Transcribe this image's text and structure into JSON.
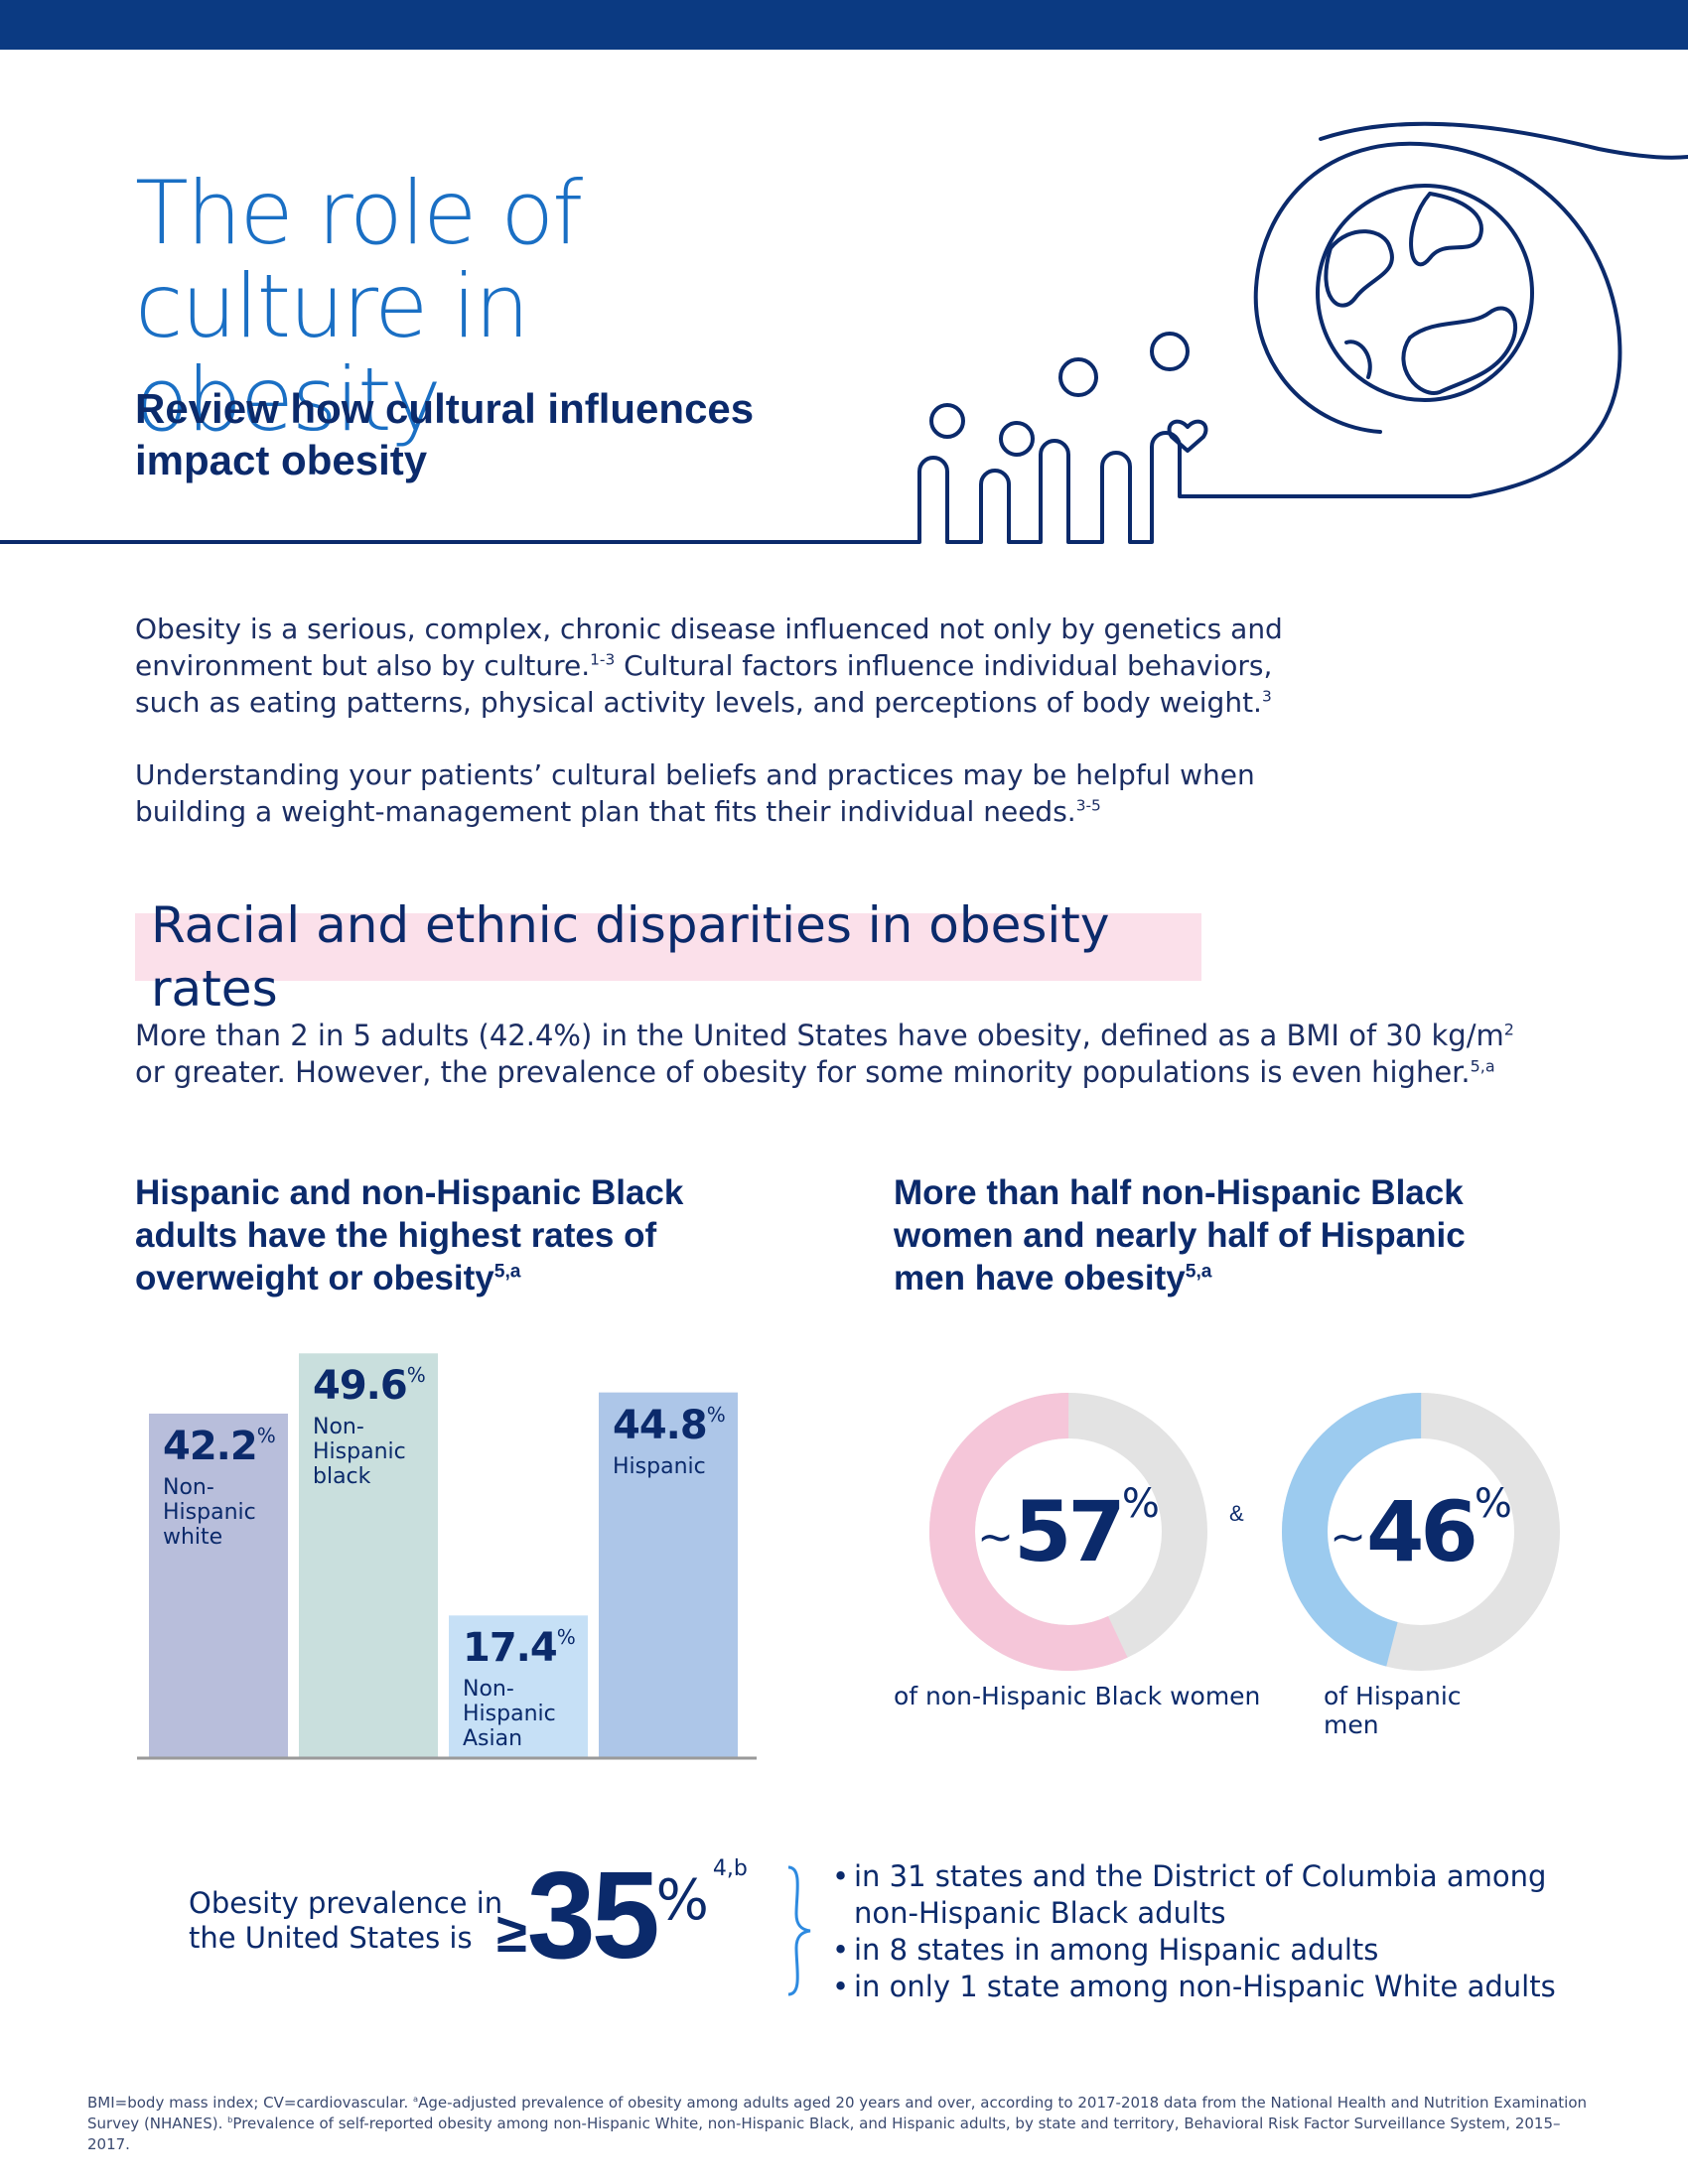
{
  "header": {
    "title": "The role of culture in obesity",
    "subtitle": "Review how cultural influences impact obesity"
  },
  "intro": {
    "p1": "Obesity is a serious, complex, chronic disease influenced not only by genetics and environment but also by culture.",
    "p1_ref1": "1-3",
    "p1_b": " Cultural factors influence individual behaviors, such as eating patterns, physical activity levels, and perceptions of body weight.",
    "p1_ref2": "3",
    "p2": "Understanding your patients’ cultural beliefs and practices may be helpful when building a weight-management plan that fits their individual needs.",
    "p2_ref": "3-5"
  },
  "section": {
    "title": "Racial and ethnic disparities in obesity rates",
    "lead_a": "More than 2 in 5 adults (42.4%) in the United States have obesity, defined as a BMI of 30 kg/m",
    "lead_sq": "2",
    "lead_b": " or greater. However, the prevalence of obesity for some minority populations is even higher.",
    "lead_ref": "5,a"
  },
  "left_heading": {
    "text": "Hispanic and non-Hispanic Black adults have the  highest rates of overweight or obesity",
    "ref": "5,a"
  },
  "right_heading": {
    "text": "More than half non-Hispanic Black women and nearly half of Hispanic men have obesity",
    "ref": "5,a"
  },
  "chart_data": [
    {
      "type": "bar",
      "title": "Hispanic and non-Hispanic Black adults have the  highest rates of overweight or obesity",
      "categories": [
        "Non-Hispanic white",
        "Non-Hispanic black",
        "Non-Hispanic Asian",
        "Hispanic"
      ],
      "values": [
        42.2,
        49.6,
        17.4,
        44.8
      ],
      "unit": "%",
      "colors": [
        "#b8bedb",
        "#c9dfdd",
        "#c6e0f6",
        "#adc6e8"
      ],
      "labels": [
        {
          "value": "42.2",
          "lines": [
            "Non-",
            "Hispanic",
            "white"
          ]
        },
        {
          "value": "49.6",
          "lines": [
            "Non-",
            "Hispanic",
            "black"
          ]
        },
        {
          "value": "17.4",
          "lines": [
            "Non-",
            "Hispanic",
            "Asian"
          ]
        },
        {
          "value": "44.8",
          "lines": [
            "Hispanic"
          ]
        }
      ],
      "ylim": [
        0,
        50
      ]
    },
    {
      "type": "pie",
      "title": "More than half non-Hispanic Black women and nearly half of Hispanic men have obesity",
      "items": [
        {
          "value": 57,
          "display": "57",
          "tilde": "~",
          "caption": "of non-Hispanic Black women",
          "color": "#f5c6d9",
          "rest_color": "#e3e3e3"
        },
        {
          "value": 46,
          "display": "46",
          "tilde": "~",
          "caption": "of Hispanic men",
          "color": "#9ccbef",
          "rest_color": "#e3e3e3"
        }
      ],
      "unit": "%",
      "connector": "&"
    }
  ],
  "prevalence": {
    "label": "Obesity prevalence in the United States is",
    "symbol": "≥",
    "value": "35",
    "unit": "%",
    "ref": "4,b",
    "bullets": [
      "in 31 states and the District of Columbia among non-Hispanic Black adults",
      "in 8 states in among Hispanic adults",
      "in only 1 state among non-Hispanic White adults"
    ]
  },
  "footnote": {
    "text_a": "BMI=body mass index; CV=cardiovascular. ",
    "ref_a": "a",
    "text_b": "Age-adjusted prevalence of obesity among adults aged 20 years and over, according to 2017-2018 data from the National Health and Nutrition Examination Survey (NHANES). ",
    "ref_b": "b",
    "text_c": "Prevalence of self-reported obesity among non-Hispanic White, non-Hispanic Black, and Hispanic adults, by state and territory, Behavioral Risk Factor Surveillance System, 2015–2017."
  },
  "colors": {
    "navy": "#0b2a6b",
    "title_blue": "#1a6fc4",
    "highlight_pink": "#fbe0ea",
    "bar_top": "#0b3a82"
  }
}
